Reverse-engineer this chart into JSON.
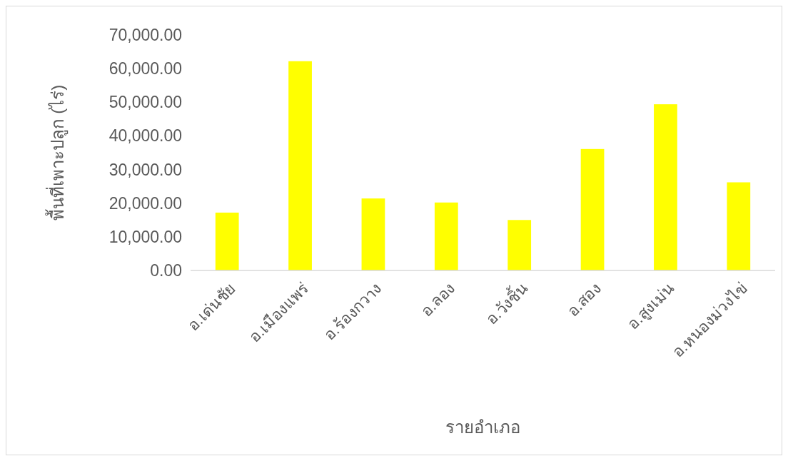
{
  "chart_data": {
    "type": "bar",
    "xlabel": "รายอำเภอ",
    "ylabel": "พื้นที่เพาะปลูก (ไร่)",
    "categories": [
      "อ.เด่นชัย",
      "อ.เมืองแพร่",
      "อ.ร้องกวาง",
      "อ.ลอง",
      "อ.วังชิ้น",
      "อ.สอง",
      "อ.สูงเม่น",
      "อ.หนองม่วงไข่"
    ],
    "values": [
      17200,
      62200,
      21400,
      20200,
      15000,
      36100,
      49400,
      26200
    ],
    "color": "#ffff00",
    "ylim": [
      0,
      70000
    ],
    "yticks": [
      {
        "value": 0,
        "label": "0.00"
      },
      {
        "value": 10000,
        "label": "10,000.00"
      },
      {
        "value": 20000,
        "label": "20,000.00"
      },
      {
        "value": 30000,
        "label": "30,000.00"
      },
      {
        "value": 40000,
        "label": "40,000.00"
      },
      {
        "value": 50000,
        "label": "50,000.00"
      },
      {
        "value": 60000,
        "label": "60,000.00"
      },
      {
        "value": 70000,
        "label": "70,000.00"
      }
    ]
  }
}
